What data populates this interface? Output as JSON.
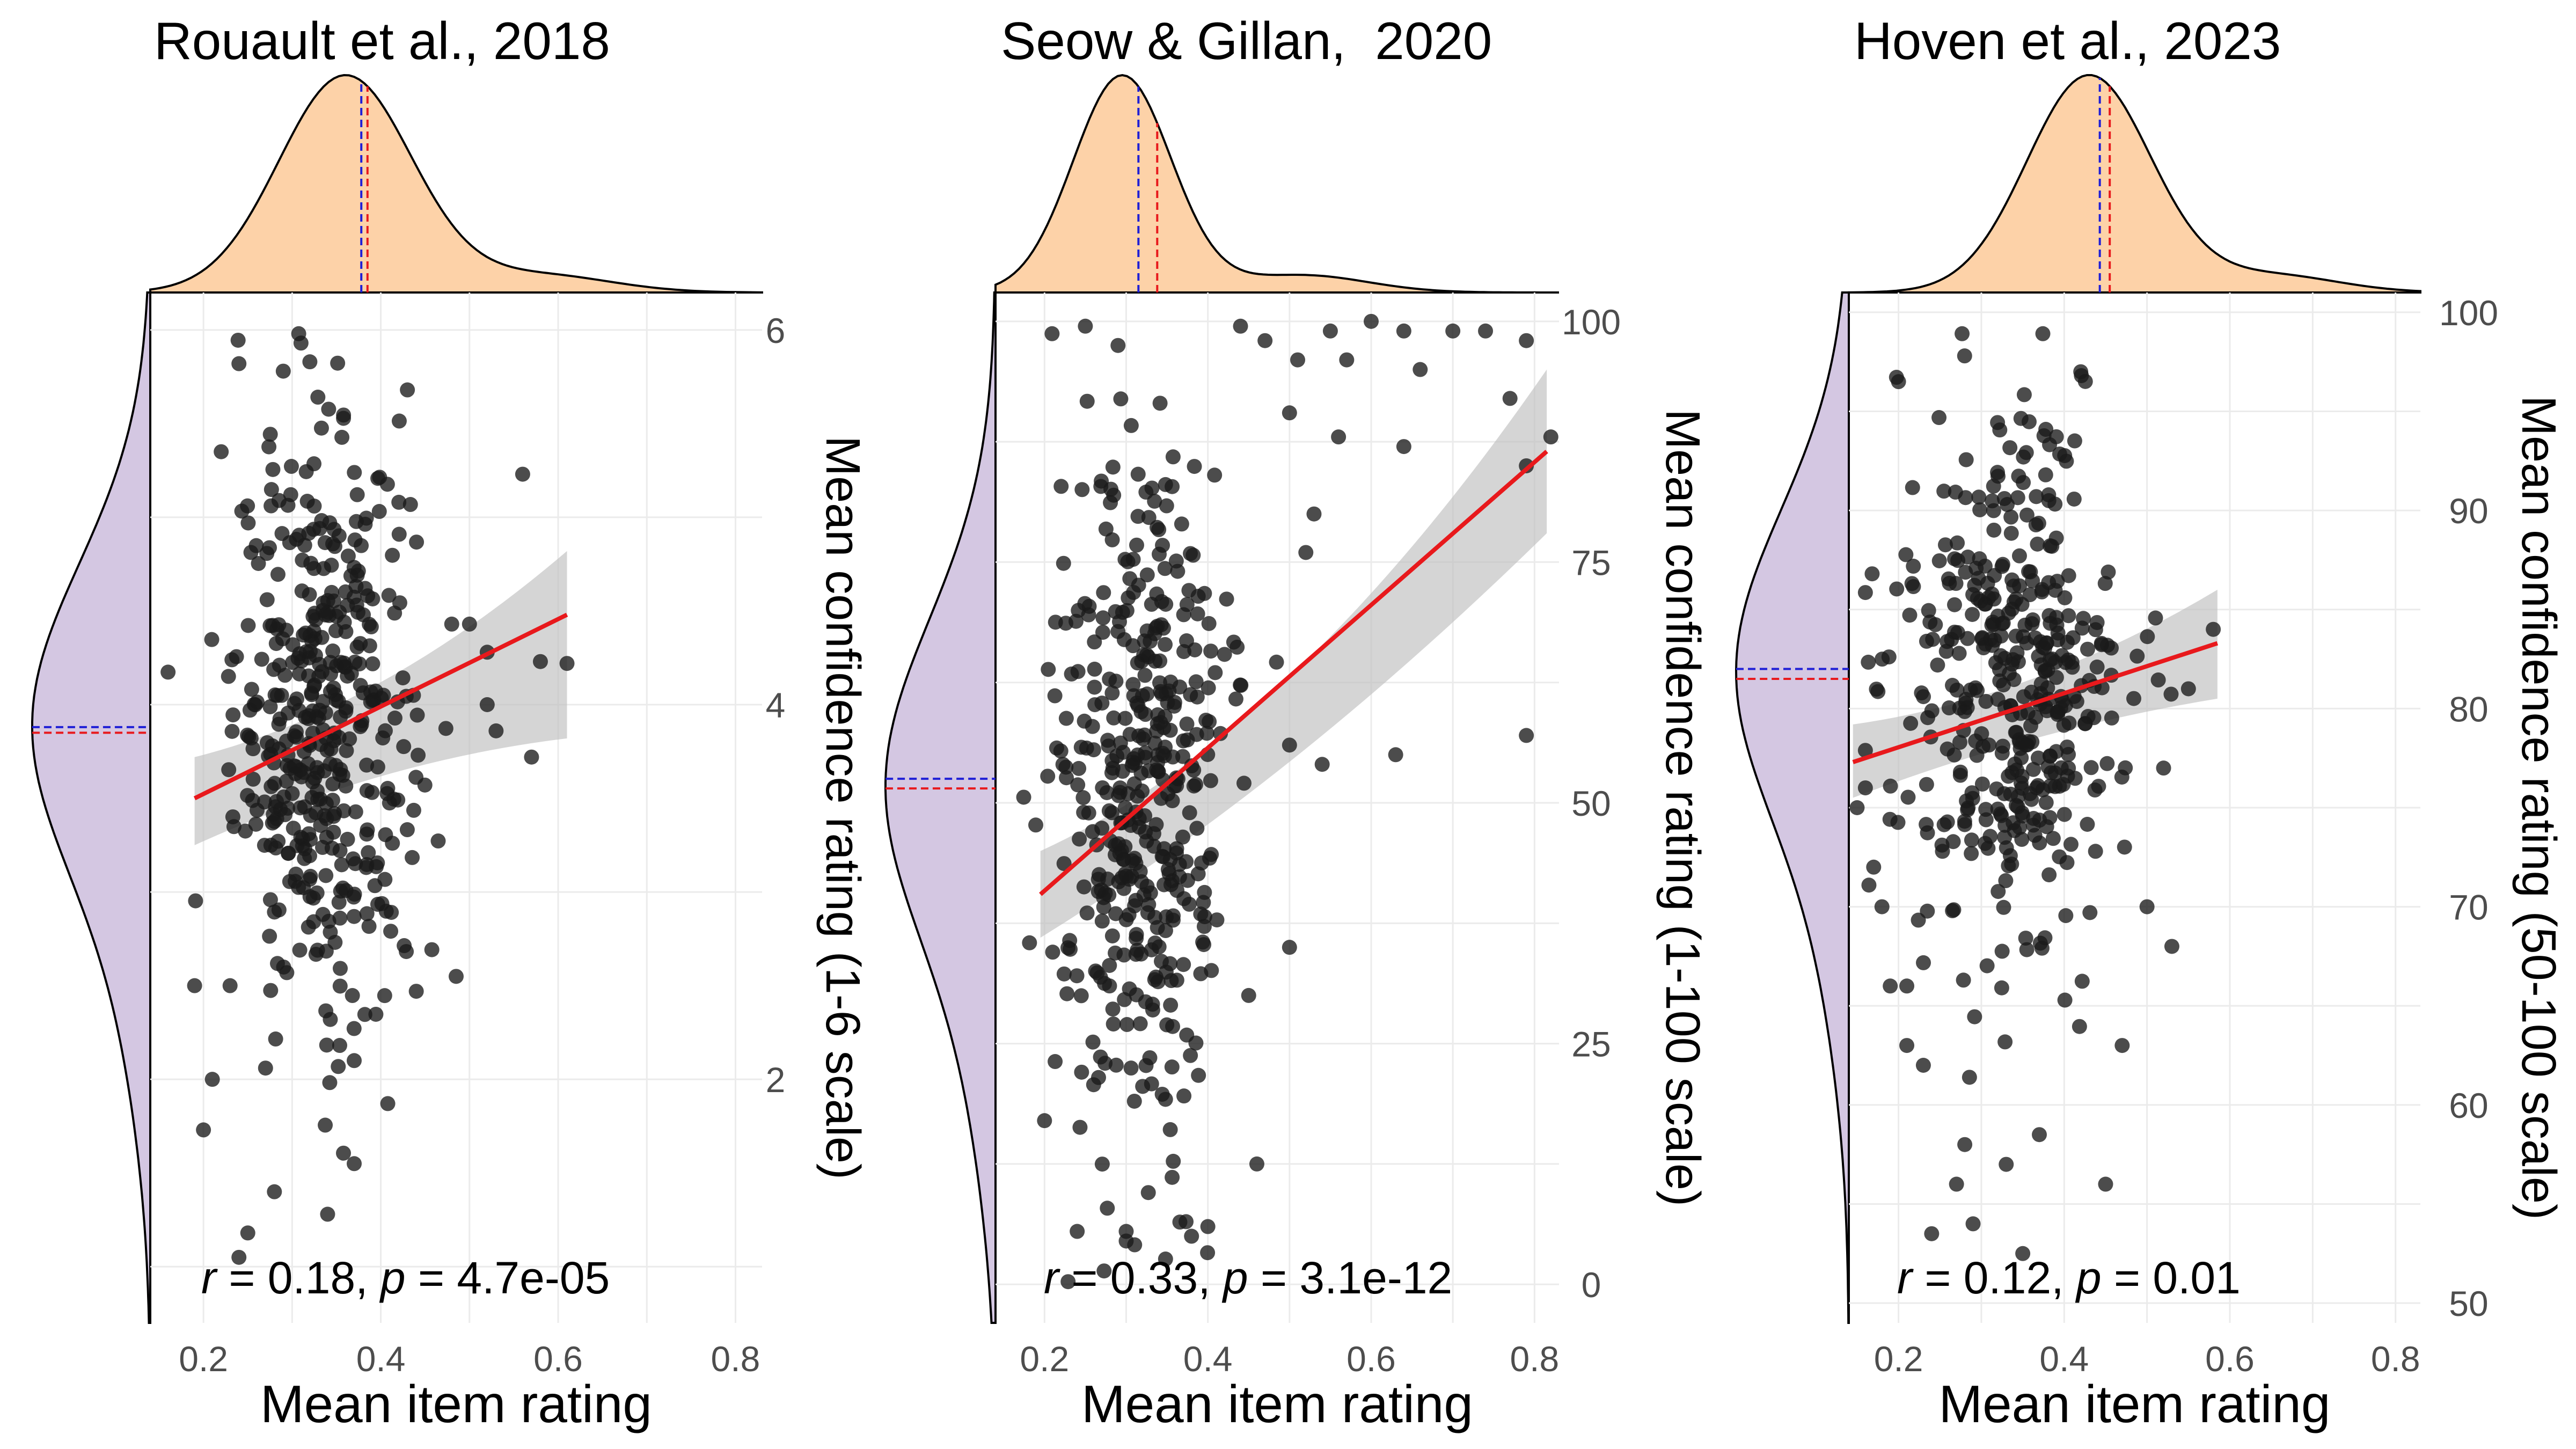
{
  "colors": {
    "x_density_fill": "#FDD2A8",
    "y_density_fill": "#D4C7E2",
    "point": "#1a1a1a",
    "fit_line": "#E8191C",
    "ci_band": "#BEBEBE",
    "mean_line": "#1F1FD6",
    "median_line": "#E8191C"
  },
  "chart_data": [
    {
      "type": "scatter",
      "title": "Rouault et al., 2018",
      "xlabel": "Mean item rating",
      "ylabel": "Mean confidence rating (1-6 scale)",
      "xlim": [
        0.14,
        0.83
      ],
      "ylim": [
        0.7,
        6.2
      ],
      "x_ticks": [
        0.2,
        0.4,
        0.6,
        0.8
      ],
      "x_tick_labels": [
        "0.2",
        "0.4",
        "0.6",
        "0.8"
      ],
      "y_ticks": [
        2,
        4,
        6
      ],
      "y_tick_labels": [
        "2",
        "4",
        "6"
      ],
      "annotation": {
        "r": "0.18",
        "p": "4.7e-05"
      },
      "fit": {
        "x0": 0.19,
        "y0": 3.5,
        "x1": 0.61,
        "y1": 4.48,
        "ci_lo": [
          3.25,
          3.7,
          3.82
        ],
        "ci_hi": [
          3.72,
          3.97,
          4.82
        ]
      },
      "x_marginal_lines": {
        "mean": 0.378,
        "median": 0.385
      },
      "y_marginal_lines": {
        "mean": 3.88,
        "median": 3.85
      },
      "x_density": {
        "center": 0.36,
        "sd": 0.075
      },
      "y_density": {
        "center": 3.9,
        "sd": 0.85
      },
      "points": [
        {
          "x": 0.24,
          "y": 5.82
        },
        {
          "x": 0.32,
          "y": 5.83
        },
        {
          "x": 0.31,
          "y": 5.93
        },
        {
          "x": 0.29,
          "y": 5.78
        },
        {
          "x": 0.43,
          "y": 5.68
        },
        {
          "x": 0.56,
          "y": 5.23
        },
        {
          "x": 0.61,
          "y": 4.22
        },
        {
          "x": 0.58,
          "y": 4.23
        },
        {
          "x": 0.52,
          "y": 4.28
        },
        {
          "x": 0.57,
          "y": 3.72
        },
        {
          "x": 0.53,
          "y": 3.86
        },
        {
          "x": 0.37,
          "y": 1.55
        },
        {
          "x": 0.34,
          "y": 1.28
        },
        {
          "x": 0.28,
          "y": 1.4
        },
        {
          "x": 0.25,
          "y": 1.18
        },
        {
          "x": 0.24,
          "y": 1.05
        },
        {
          "x": 0.21,
          "y": 2.0
        },
        {
          "x": 0.19,
          "y": 2.5
        },
        {
          "x": 0.44,
          "y": 2.47
        },
        {
          "x": 0.2,
          "y": 1.73
        },
        {
          "x": 0.23,
          "y": 2.5
        },
        {
          "x": 0.27,
          "y": 2.06
        },
        {
          "x": 0.37,
          "y": 2.1
        },
        {
          "x": 0.22,
          "y": 5.35
        },
        {
          "x": 0.48,
          "y": 4.43
        },
        {
          "x": 0.5,
          "y": 4.43
        },
        {
          "x": 0.52,
          "y": 4.0
        }
      ],
      "cloud": {
        "n": 430,
        "x_center": 0.335,
        "x_sd": 0.05,
        "y_center": 3.9,
        "y_sd": 0.75
      }
    },
    {
      "type": "scatter",
      "title": "Seow & Gillan,  2020",
      "xlabel": "Mean item rating",
      "ylabel": "Mean confidence rating (1-100 scale)",
      "xlim": [
        0.14,
        0.83
      ],
      "ylim": [
        -4,
        103
      ],
      "x_ticks": [
        0.2,
        0.4,
        0.6,
        0.8
      ],
      "x_tick_labels": [
        "0.2",
        "0.4",
        "0.6",
        "0.8"
      ],
      "y_ticks": [
        0,
        25,
        50,
        75,
        100
      ],
      "y_tick_labels": [
        "0",
        "25",
        "50",
        "75",
        "100"
      ],
      "annotation": {
        "r": "0.33",
        "p": "3.1e-12"
      },
      "fit": {
        "x0": 0.195,
        "y0": 40.5,
        "x1": 0.815,
        "y1": 86.5,
        "ci_lo": [
          36.0,
          52.2,
          78.0
        ],
        "ci_hi": [
          45.0,
          57.0,
          95.0
        ]
      },
      "x_marginal_lines": {
        "mean": 0.315,
        "median": 0.338
      },
      "y_marginal_lines": {
        "mean": 52.5,
        "median": 51.5
      },
      "x_density": {
        "center": 0.295,
        "sd": 0.06
      },
      "y_density": {
        "center": 52,
        "sd": 17
      },
      "points": [
        {
          "x": 0.25,
          "y": 99.5
        },
        {
          "x": 0.44,
          "y": 99.5
        },
        {
          "x": 0.47,
          "y": 98
        },
        {
          "x": 0.55,
          "y": 99
        },
        {
          "x": 0.6,
          "y": 100
        },
        {
          "x": 0.64,
          "y": 99
        },
        {
          "x": 0.7,
          "y": 99
        },
        {
          "x": 0.74,
          "y": 99
        },
        {
          "x": 0.79,
          "y": 98
        },
        {
          "x": 0.57,
          "y": 96
        },
        {
          "x": 0.51,
          "y": 96
        },
        {
          "x": 0.66,
          "y": 95
        },
        {
          "x": 0.77,
          "y": 92
        },
        {
          "x": 0.79,
          "y": 85
        },
        {
          "x": 0.82,
          "y": 88
        },
        {
          "x": 0.64,
          "y": 87
        },
        {
          "x": 0.56,
          "y": 88
        },
        {
          "x": 0.5,
          "y": 90.5
        },
        {
          "x": 0.53,
          "y": 80
        },
        {
          "x": 0.52,
          "y": 76
        },
        {
          "x": 0.63,
          "y": 55
        },
        {
          "x": 0.79,
          "y": 57
        },
        {
          "x": 0.5,
          "y": 56
        },
        {
          "x": 0.54,
          "y": 54
        },
        {
          "x": 0.45,
          "y": 30
        },
        {
          "x": 0.5,
          "y": 35
        },
        {
          "x": 0.2,
          "y": 17
        },
        {
          "x": 0.21,
          "y": 34.5
        },
        {
          "x": 0.24,
          "y": 5.5
        },
        {
          "x": 0.3,
          "y": 4.5
        },
        {
          "x": 0.3,
          "y": 5.5
        },
        {
          "x": 0.4,
          "y": 6
        },
        {
          "x": 0.46,
          "y": 12.5
        },
        {
          "x": 0.29,
          "y": 97.5
        },
        {
          "x": 0.38,
          "y": 5
        }
      ],
      "cloud": {
        "n": 420,
        "x_center": 0.32,
        "x_sd": 0.05,
        "y_center": 50,
        "y_sd": 18
      }
    },
    {
      "type": "scatter",
      "title": "Hoven et al., 2023",
      "xlabel": "Mean item rating",
      "ylabel": "Mean confidence rating (50-100 scale)",
      "xlim": [
        0.14,
        0.83
      ],
      "ylim": [
        49,
        101
      ],
      "x_ticks": [
        0.2,
        0.4,
        0.6,
        0.8
      ],
      "x_tick_labels": [
        "0.2",
        "0.4",
        "0.6",
        "0.8"
      ],
      "y_ticks": [
        50,
        60,
        70,
        80,
        90,
        100
      ],
      "y_tick_labels": [
        "50",
        "60",
        "70",
        "80",
        "90",
        "100"
      ],
      "annotation": {
        "r": "0.12",
        "p": "0.01"
      },
      "fit": {
        "x0": 0.145,
        "y0": 77.3,
        "x1": 0.585,
        "y1": 83.3,
        "ci_lo": [
          75.5,
          79.0,
          80.5
        ],
        "ci_hi": [
          79.2,
          80.5,
          86.0
        ]
      },
      "x_marginal_lines": {
        "mean": 0.443,
        "median": 0.455
      },
      "y_marginal_lines": {
        "mean": 82.0,
        "median": 81.5
      },
      "x_density": {
        "center": 0.43,
        "sd": 0.075
      },
      "y_density": {
        "center": 82,
        "sd": 8
      },
      "points": [
        {
          "x": 0.2,
          "y": 96.5
        },
        {
          "x": 0.42,
          "y": 97
        },
        {
          "x": 0.58,
          "y": 84
        },
        {
          "x": 0.55,
          "y": 81
        },
        {
          "x": 0.53,
          "y": 68
        },
        {
          "x": 0.47,
          "y": 63
        },
        {
          "x": 0.45,
          "y": 56
        },
        {
          "x": 0.37,
          "y": 58.5
        },
        {
          "x": 0.33,
          "y": 57
        },
        {
          "x": 0.28,
          "y": 58
        },
        {
          "x": 0.27,
          "y": 56
        },
        {
          "x": 0.24,
          "y": 53.5
        },
        {
          "x": 0.35,
          "y": 52.5
        },
        {
          "x": 0.29,
          "y": 54
        },
        {
          "x": 0.19,
          "y": 66
        },
        {
          "x": 0.21,
          "y": 63
        },
        {
          "x": 0.21,
          "y": 66
        },
        {
          "x": 0.15,
          "y": 75
        },
        {
          "x": 0.16,
          "y": 76
        },
        {
          "x": 0.17,
          "y": 72
        },
        {
          "x": 0.18,
          "y": 70
        },
        {
          "x": 0.23,
          "y": 62
        },
        {
          "x": 0.52,
          "y": 77
        },
        {
          "x": 0.5,
          "y": 70
        }
      ],
      "cloud": {
        "n": 420,
        "x_center": 0.34,
        "x_sd": 0.065,
        "y_center": 80.5,
        "y_sd": 7
      }
    }
  ]
}
